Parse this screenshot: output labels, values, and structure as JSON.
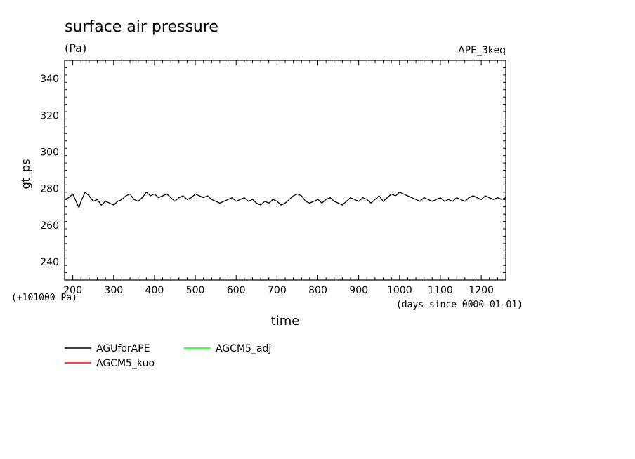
{
  "chart_data": {
    "type": "line",
    "title": "surface air pressure",
    "units": "(Pa)",
    "experiment": "APE_3keq",
    "xlabel": "time",
    "x_units": "(days since 0000-01-01)",
    "ylabel": "gt_ps",
    "y_offset_label": "(+101000 Pa)",
    "xlim": [
      180,
      1260
    ],
    "ylim": [
      230,
      350
    ],
    "x_ticks": [
      200,
      300,
      400,
      500,
      600,
      700,
      800,
      900,
      1000,
      1100,
      1200
    ],
    "x_tick_labels": [
      "200",
      "300",
      "400",
      "500",
      "600",
      "700",
      "800",
      "900",
      "1000",
      "1100",
      "1200"
    ],
    "y_ticks": [
      240,
      260,
      280,
      300,
      320,
      340
    ],
    "y_tick_labels": [
      "240",
      "260",
      "280",
      "300",
      "320",
      "340"
    ],
    "grid": false,
    "legend_position": "bottom-left",
    "series": [
      {
        "name": "AGUforAPE",
        "color": "#000000",
        "x": [
          180,
          190,
          200,
          210,
          215,
          220,
          230,
          240,
          250,
          260,
          270,
          280,
          290,
          300,
          310,
          320,
          330,
          340,
          350,
          360,
          370,
          380,
          390,
          400,
          410,
          420,
          430,
          440,
          450,
          460,
          470,
          480,
          490,
          500,
          510,
          520,
          530,
          540,
          550,
          560,
          570,
          580,
          590,
          600,
          610,
          620,
          630,
          640,
          650,
          660,
          670,
          680,
          690,
          700,
          710,
          720,
          730,
          740,
          750,
          760,
          770,
          780,
          790,
          800,
          810,
          820,
          830,
          840,
          850,
          860,
          870,
          880,
          890,
          900,
          910,
          920,
          930,
          940,
          950,
          960,
          970,
          980,
          990,
          1000,
          1010,
          1020,
          1030,
          1040,
          1050,
          1060,
          1070,
          1080,
          1090,
          1100,
          1110,
          1120,
          1130,
          1140,
          1150,
          1160,
          1170,
          1180,
          1190,
          1200,
          1210,
          1220,
          1230,
          1240,
          1250,
          1260
        ],
        "values": [
          274,
          275,
          277,
          272,
          269.5,
          273,
          278,
          276,
          273,
          274,
          271,
          273,
          272,
          271,
          273,
          274,
          276,
          277,
          274,
          273,
          275,
          278,
          276,
          277,
          275,
          276,
          277,
          275,
          273,
          275,
          276,
          274,
          275,
          277,
          276,
          275,
          276,
          274,
          273,
          272,
          273,
          274,
          275,
          273,
          274,
          275,
          273,
          274,
          272,
          271,
          273,
          272,
          274,
          273,
          271,
          272,
          274,
          276,
          277,
          276,
          273,
          272,
          273,
          274,
          272,
          274,
          275,
          273,
          272,
          271,
          273,
          275,
          274,
          273,
          275,
          274,
          272,
          274,
          276,
          273,
          275,
          277,
          276,
          278,
          277,
          276,
          275,
          274,
          273,
          275,
          274,
          273,
          274,
          275,
          273,
          274,
          273,
          275,
          274,
          273,
          275,
          276,
          275,
          274,
          276,
          275,
          274,
          275,
          274,
          275
        ]
      },
      {
        "name": "AGCM5_kuo",
        "color": "#ff0000",
        "x": [],
        "values": []
      },
      {
        "name": "AGCM5_adj",
        "color": "#00ff00",
        "x": [],
        "values": []
      }
    ]
  }
}
